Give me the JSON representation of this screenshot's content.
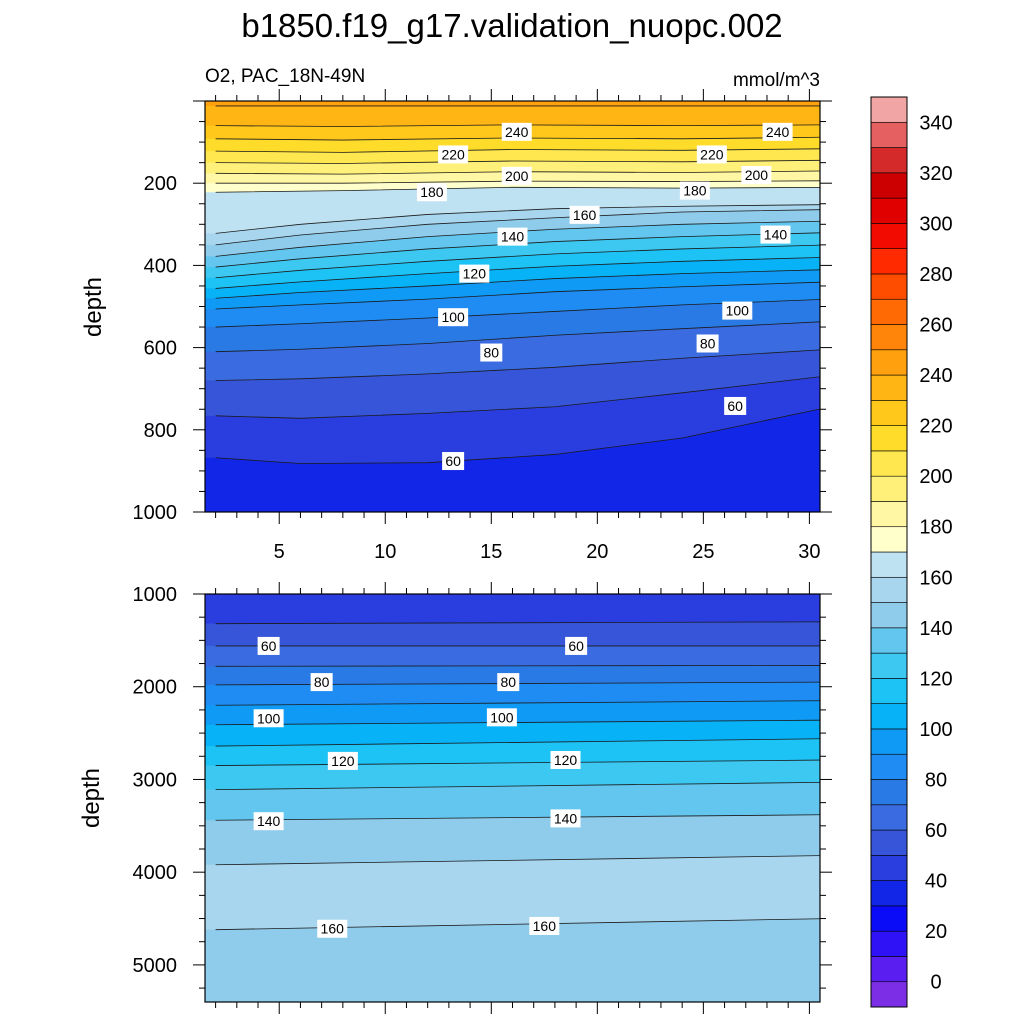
{
  "chart_data": {
    "type": "contour",
    "title": "b1850.f19_g17.validation_nuopc.002",
    "variable_label": "O2, PAC_18N-49N",
    "units_label": "mmol/m^3",
    "colorbar": {
      "levels": [
        0,
        10,
        20,
        30,
        40,
        50,
        60,
        70,
        80,
        90,
        100,
        110,
        120,
        130,
        140,
        150,
        160,
        170,
        180,
        190,
        200,
        210,
        220,
        230,
        240,
        250,
        260,
        270,
        280,
        290,
        300,
        310,
        320,
        330,
        340,
        350
      ],
      "colors": [
        "#7b2ee6",
        "#5a1ff0",
        "#2f12f5",
        "#0a0cf7",
        "#1226e8",
        "#2a3ee0",
        "#3755d8",
        "#3a6be0",
        "#2a7ae6",
        "#1e8cf2",
        "#0f9bf5",
        "#08b2f7",
        "#1ec3f5",
        "#3cc8f0",
        "#62c6ef",
        "#8fcbeb",
        "#a9d6ef",
        "#bfe2f2",
        "#ffffcc",
        "#fff7a3",
        "#fff07a",
        "#ffe74f",
        "#ffdb2a",
        "#ffc81a",
        "#ffb514",
        "#ffa00f",
        "#ff850a",
        "#ff6a05",
        "#ff4d00",
        "#ff2a00",
        "#f20b00",
        "#e00000",
        "#cc0000",
        "#d42a2a",
        "#e56060",
        "#f2a5a5"
      ],
      "tick_labels": [
        "0",
        "20",
        "40",
        "60",
        "80",
        "100",
        "120",
        "140",
        "160",
        "180",
        "200",
        "220",
        "240",
        "260",
        "280",
        "300",
        "320",
        "340"
      ]
    },
    "panels": [
      {
        "name": "upper",
        "xlabel": "",
        "ylabel": "depth",
        "xlim": [
          1.5,
          30.5
        ],
        "ylim": [
          1000,
          0
        ],
        "x_ticks": [
          "5",
          "10",
          "15",
          "20",
          "25",
          "30"
        ],
        "y_ticks": [
          "200",
          "400",
          "600",
          "800",
          "1000"
        ],
        "contours": [
          {
            "level": 250,
            "x": [
              2,
              31
            ],
            "y": [
              12,
              12
            ]
          },
          {
            "level": 240,
            "x": [
              2,
              8,
              16,
              24,
              31
            ],
            "y": [
              60,
              62,
              58,
              60,
              58
            ]
          },
          {
            "level": 230,
            "x": [
              2,
              8,
              16,
              24,
              31
            ],
            "y": [
              92,
              95,
              90,
              92,
              88
            ]
          },
          {
            "level": 220,
            "x": [
              2,
              8,
              16,
              24,
              31
            ],
            "y": [
              122,
              125,
              118,
              120,
              116
            ]
          },
          {
            "level": 210,
            "x": [
              2,
              8,
              16,
              24,
              31
            ],
            "y": [
              150,
              152,
              146,
              148,
              144
            ]
          },
          {
            "level": 200,
            "x": [
              2,
              8,
              16,
              24,
              31
            ],
            "y": [
              176,
              178,
              172,
              174,
              170
            ]
          },
          {
            "level": 190,
            "x": [
              2,
              8,
              16,
              24,
              31
            ],
            "y": [
              200,
              200,
              195,
              196,
              194
            ]
          },
          {
            "level": 180,
            "x": [
              2,
              8,
              16,
              24,
              31
            ],
            "y": [
              222,
              218,
              210,
              212,
              210
            ]
          },
          {
            "level": 170,
            "x": [
              2,
              6,
              12,
              18,
              24,
              31
            ],
            "y": [
              322,
              300,
              276,
              262,
              256,
              252
            ]
          },
          {
            "level": 160,
            "x": [
              2,
              6,
              12,
              18,
              24,
              31
            ],
            "y": [
              350,
              326,
              300,
              284,
              270,
              264
            ]
          },
          {
            "level": 150,
            "x": [
              2,
              6,
              12,
              18,
              24,
              31
            ],
            "y": [
              378,
              356,
              330,
              312,
              300,
              292
            ]
          },
          {
            "level": 140,
            "x": [
              2,
              6,
              12,
              18,
              24,
              31
            ],
            "y": [
              404,
              384,
              360,
              342,
              330,
              320
            ]
          },
          {
            "level": 130,
            "x": [
              2,
              6,
              12,
              18,
              24,
              31
            ],
            "y": [
              430,
              412,
              390,
              372,
              360,
              350
            ]
          },
          {
            "level": 120,
            "x": [
              2,
              6,
              12,
              18,
              24,
              31
            ],
            "y": [
              456,
              440,
              420,
              402,
              390,
              380
            ]
          },
          {
            "level": 110,
            "x": [
              2,
              6,
              12,
              18,
              24,
              31
            ],
            "y": [
              480,
              466,
              450,
              432,
              420,
              410
            ]
          },
          {
            "level": 100,
            "x": [
              2,
              6,
              12,
              18,
              24,
              31
            ],
            "y": [
              506,
              496,
              482,
              464,
              452,
              440
            ]
          },
          {
            "level": 90,
            "x": [
              2,
              6,
              12,
              18,
              24,
              31
            ],
            "y": [
              550,
              542,
              528,
              512,
              496,
              482
            ]
          },
          {
            "level": 80,
            "x": [
              2,
              6,
              12,
              18,
              24,
              31
            ],
            "y": [
              610,
              604,
              590,
              570,
              554,
              536
            ]
          },
          {
            "level": 70,
            "x": [
              2,
              6,
              12,
              18,
              24,
              31
            ],
            "y": [
              680,
              676,
              664,
              648,
              626,
              604
            ]
          },
          {
            "level": 60,
            "x": [
              2,
              6,
              12,
              18,
              24,
              31
            ],
            "y": [
              766,
              772,
              760,
              744,
              710,
              668
            ]
          },
          {
            "level": 50,
            "x": [
              2,
              6,
              12,
              18,
              24,
              31
            ],
            "y": [
              868,
              882,
              880,
              860,
              820,
              744
            ]
          }
        ],
        "contour_labels": [
          {
            "text": "240",
            "x": 16.2,
            "y": 75
          },
          {
            "text": "240",
            "x": 28.5,
            "y": 75
          },
          {
            "text": "220",
            "x": 13.2,
            "y": 130
          },
          {
            "text": "220",
            "x": 25.4,
            "y": 130
          },
          {
            "text": "200",
            "x": 16.2,
            "y": 182
          },
          {
            "text": "200",
            "x": 27.5,
            "y": 180
          },
          {
            "text": "180",
            "x": 12.2,
            "y": 222
          },
          {
            "text": "180",
            "x": 24.6,
            "y": 218
          },
          {
            "text": "160",
            "x": 19.4,
            "y": 277
          },
          {
            "text": "140",
            "x": 16.0,
            "y": 330
          },
          {
            "text": "140",
            "x": 28.4,
            "y": 325
          },
          {
            "text": "120",
            "x": 14.2,
            "y": 420
          },
          {
            "text": "100",
            "x": 26.6,
            "y": 510
          },
          {
            "text": "100",
            "x": 13.2,
            "y": 526
          },
          {
            "text": "80",
            "x": 25.2,
            "y": 590
          },
          {
            "text": "80",
            "x": 15.0,
            "y": 612
          },
          {
            "text": "60",
            "x": 26.5,
            "y": 742
          },
          {
            "text": "60",
            "x": 13.2,
            "y": 876
          }
        ]
      },
      {
        "name": "lower",
        "xlabel": "",
        "ylabel": "depth",
        "xlim": [
          1.5,
          30.5
        ],
        "ylim": [
          5400,
          1000
        ],
        "x_ticks": [],
        "y_ticks": [
          "1000",
          "2000",
          "3000",
          "4000",
          "5000"
        ],
        "contours": [
          {
            "level": 50,
            "x": [
              2,
              31
            ],
            "y": [
              1320,
              1300
            ]
          },
          {
            "level": 60,
            "x": [
              2,
              31
            ],
            "y": [
              1560,
              1560
            ]
          },
          {
            "level": 70,
            "x": [
              2,
              31
            ],
            "y": [
              1780,
              1770
            ]
          },
          {
            "level": 80,
            "x": [
              2,
              31
            ],
            "y": [
              1980,
              1950
            ]
          },
          {
            "level": 90,
            "x": [
              2,
              31
            ],
            "y": [
              2200,
              2150
            ]
          },
          {
            "level": 100,
            "x": [
              2,
              31
            ],
            "y": [
              2410,
              2360
            ]
          },
          {
            "level": 110,
            "x": [
              2,
              31
            ],
            "y": [
              2640,
              2560
            ]
          },
          {
            "level": 120,
            "x": [
              2,
              31
            ],
            "y": [
              2850,
              2790
            ]
          },
          {
            "level": 130,
            "x": [
              2,
              31
            ],
            "y": [
              3110,
              3030
            ]
          },
          {
            "level": 140,
            "x": [
              2,
              31
            ],
            "y": [
              3440,
              3380
            ]
          },
          {
            "level": 150,
            "x": [
              2,
              31
            ],
            "y": [
              3920,
              3820
            ]
          },
          {
            "level": 160,
            "x": [
              2,
              31
            ],
            "y": [
              4620,
              4500
            ]
          }
        ],
        "contour_labels": [
          {
            "text": "60",
            "x": 4.5,
            "y": 1560
          },
          {
            "text": "60",
            "x": 19.0,
            "y": 1560
          },
          {
            "text": "80",
            "x": 7.0,
            "y": 1950
          },
          {
            "text": "80",
            "x": 15.8,
            "y": 1950
          },
          {
            "text": "100",
            "x": 4.5,
            "y": 2340
          },
          {
            "text": "100",
            "x": 15.5,
            "y": 2330
          },
          {
            "text": "120",
            "x": 8.0,
            "y": 2800
          },
          {
            "text": "120",
            "x": 18.5,
            "y": 2790
          },
          {
            "text": "140",
            "x": 4.5,
            "y": 3450
          },
          {
            "text": "140",
            "x": 18.5,
            "y": 3420
          },
          {
            "text": "160",
            "x": 7.5,
            "y": 4610
          },
          {
            "text": "160",
            "x": 17.5,
            "y": 4580
          }
        ]
      }
    ]
  }
}
